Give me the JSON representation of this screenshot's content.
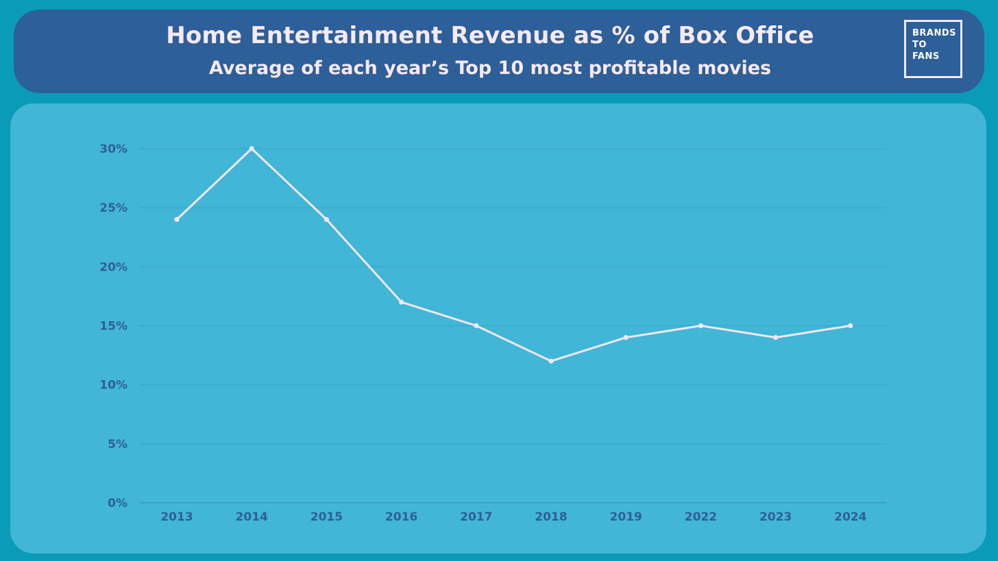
{
  "header": {
    "title": "Home Entertainment Revenue as % of Box Office",
    "subtitle": "Average of each year’s Top 10 most profitable movies"
  },
  "logo": {
    "lines": [
      "BRANDS",
      "TO",
      "FANS"
    ]
  },
  "colors": {
    "background": "#0a9bb8",
    "header": "#2d5f98",
    "panel": "#42b6d6",
    "line": "#f3e6f4",
    "grid": "#34a6c8",
    "axis_text": "#2d5f98"
  },
  "chart_data": {
    "type": "line",
    "title": "Home Entertainment Revenue as % of Box Office",
    "subtitle": "Average of each year’s Top 10 most profitable movies",
    "xlabel": "",
    "ylabel": "",
    "categories": [
      "2013",
      "2014",
      "2015",
      "2016",
      "2017",
      "2018",
      "2019",
      "2022",
      "2023",
      "2024"
    ],
    "series": [
      {
        "values": [
          24,
          30,
          24,
          17,
          15,
          12,
          14,
          15,
          14,
          15
        ]
      }
    ],
    "ylim": [
      0,
      30
    ],
    "y_ticks": [
      "0%",
      "5%",
      "10%",
      "15%",
      "20%",
      "25%",
      "30%"
    ],
    "y_tick_values": [
      0,
      5,
      10,
      15,
      20,
      25,
      30
    ],
    "grid": true,
    "legend": "none"
  }
}
